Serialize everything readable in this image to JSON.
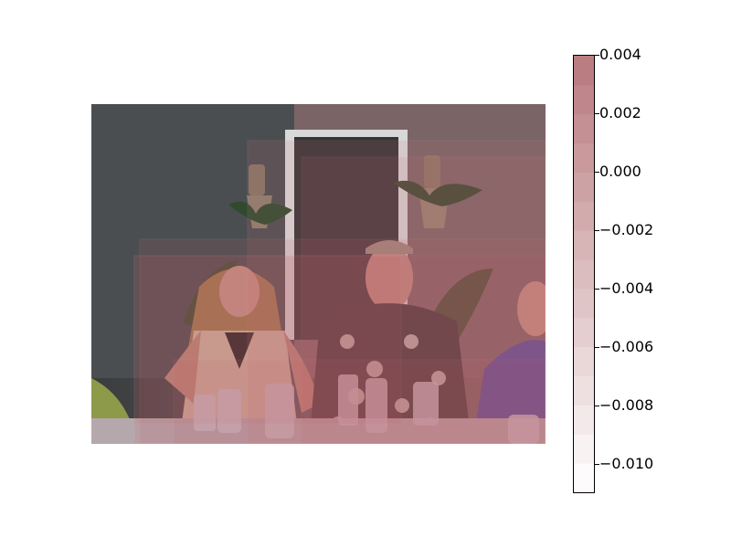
{
  "chart_data": {
    "type": "heatmap",
    "title": "",
    "xlabel": "",
    "ylabel": "",
    "colorbar": {
      "vmin": -0.011,
      "vmax": 0.004,
      "levels": 15,
      "tick_values": [
        0.004,
        0.002,
        0.0,
        -0.002,
        -0.004,
        -0.006,
        -0.008,
        -0.01
      ],
      "tick_labels": [
        "0.004",
        "0.002",
        "0.000",
        "−0.002",
        "−0.004",
        "−0.006",
        "−0.008",
        "−0.010"
      ],
      "color_low": "#ffffff",
      "color_high": "#b87a7e",
      "colormap": "white-to-red"
    }
  }
}
